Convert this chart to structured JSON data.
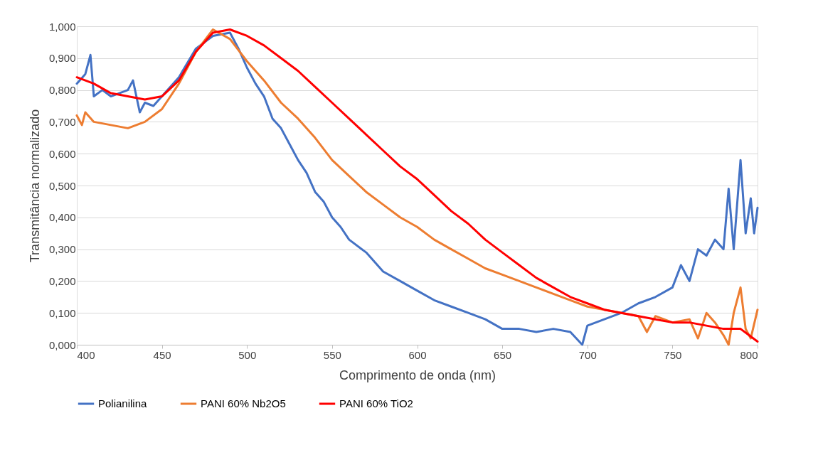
{
  "chart_data": {
    "type": "line",
    "xlabel": "Comprimento de onda (nm)",
    "ylabel": "Transmitância normalizado",
    "xlim": [
      400,
      800
    ],
    "xticks": [
      400,
      450,
      500,
      550,
      600,
      650,
      700,
      750,
      800
    ],
    "ylim": [
      0,
      1
    ],
    "yticks": [
      {
        "value": 0,
        "label": "0,000"
      },
      {
        "value": 0.1,
        "label": "0,100"
      },
      {
        "value": 0.2,
        "label": "0,200"
      },
      {
        "value": 0.3,
        "label": "0,300"
      },
      {
        "value": 0.4,
        "label": "0,400"
      },
      {
        "value": 0.5,
        "label": "0,500"
      },
      {
        "value": 0.6,
        "label": "0,600"
      },
      {
        "value": 0.7,
        "label": "0,700"
      },
      {
        "value": 0.8,
        "label": "0,800"
      },
      {
        "value": 0.9,
        "label": "0,900"
      },
      {
        "value": 1,
        "label": "1,000"
      }
    ],
    "grid": "y",
    "legend": "bottom",
    "marker": "none",
    "line_style": "solid",
    "series": [
      {
        "name": "Polianilina",
        "color": "#4472c4",
        "x": [
          400,
          405,
          408,
          410,
          415,
          420,
          430,
          433,
          437,
          440,
          445,
          450,
          460,
          470,
          480,
          490,
          495,
          500,
          505,
          510,
          515,
          520,
          525,
          530,
          535,
          540,
          545,
          550,
          555,
          560,
          570,
          580,
          590,
          600,
          610,
          620,
          630,
          640,
          650,
          660,
          670,
          680,
          690,
          697,
          700,
          710,
          720,
          730,
          740,
          750,
          755,
          760,
          765,
          770,
          775,
          780,
          783,
          786,
          790,
          793,
          796,
          798,
          800
        ],
        "values": [
          0.82,
          0.85,
          0.91,
          0.78,
          0.8,
          0.78,
          0.8,
          0.83,
          0.73,
          0.76,
          0.75,
          0.78,
          0.84,
          0.93,
          0.97,
          0.98,
          0.93,
          0.87,
          0.82,
          0.78,
          0.71,
          0.68,
          0.63,
          0.58,
          0.54,
          0.48,
          0.45,
          0.4,
          0.37,
          0.33,
          0.29,
          0.23,
          0.2,
          0.17,
          0.14,
          0.12,
          0.1,
          0.08,
          0.05,
          0.05,
          0.04,
          0.05,
          0.04,
          0.0,
          0.06,
          0.08,
          0.1,
          0.13,
          0.15,
          0.18,
          0.25,
          0.2,
          0.3,
          0.28,
          0.33,
          0.3,
          0.49,
          0.3,
          0.58,
          0.35,
          0.46,
          0.35,
          0.43
        ]
      },
      {
        "name": "PANI 60% Nb2O5",
        "color": "#ed7d31",
        "x": [
          400,
          403,
          405,
          410,
          420,
          430,
          440,
          450,
          460,
          470,
          480,
          490,
          500,
          510,
          520,
          530,
          540,
          550,
          560,
          570,
          580,
          590,
          600,
          610,
          620,
          630,
          640,
          650,
          660,
          670,
          680,
          690,
          700,
          710,
          720,
          730,
          735,
          740,
          750,
          760,
          765,
          770,
          775,
          780,
          783,
          786,
          790,
          793,
          796,
          800
        ],
        "values": [
          0.72,
          0.69,
          0.73,
          0.7,
          0.69,
          0.68,
          0.7,
          0.74,
          0.82,
          0.92,
          0.99,
          0.96,
          0.89,
          0.83,
          0.76,
          0.71,
          0.65,
          0.58,
          0.53,
          0.48,
          0.44,
          0.4,
          0.37,
          0.33,
          0.3,
          0.27,
          0.24,
          0.22,
          0.2,
          0.18,
          0.16,
          0.14,
          0.12,
          0.11,
          0.1,
          0.09,
          0.04,
          0.09,
          0.07,
          0.08,
          0.02,
          0.1,
          0.07,
          0.03,
          0.0,
          0.1,
          0.18,
          0.05,
          0.02,
          0.11
        ]
      },
      {
        "name": "PANI 60% TiO2",
        "color": "#ff0000",
        "x": [
          400,
          410,
          420,
          430,
          440,
          450,
          460,
          470,
          480,
          490,
          500,
          510,
          520,
          530,
          540,
          550,
          560,
          570,
          580,
          590,
          600,
          610,
          620,
          630,
          640,
          650,
          660,
          670,
          680,
          690,
          700,
          710,
          720,
          730,
          740,
          750,
          760,
          770,
          780,
          790,
          795,
          800
        ],
        "values": [
          0.84,
          0.82,
          0.79,
          0.78,
          0.77,
          0.78,
          0.83,
          0.92,
          0.98,
          0.99,
          0.97,
          0.94,
          0.9,
          0.86,
          0.81,
          0.76,
          0.71,
          0.66,
          0.61,
          0.56,
          0.52,
          0.47,
          0.42,
          0.38,
          0.33,
          0.29,
          0.25,
          0.21,
          0.18,
          0.15,
          0.13,
          0.11,
          0.1,
          0.09,
          0.08,
          0.07,
          0.07,
          0.06,
          0.05,
          0.05,
          0.03,
          0.01
        ]
      }
    ]
  }
}
